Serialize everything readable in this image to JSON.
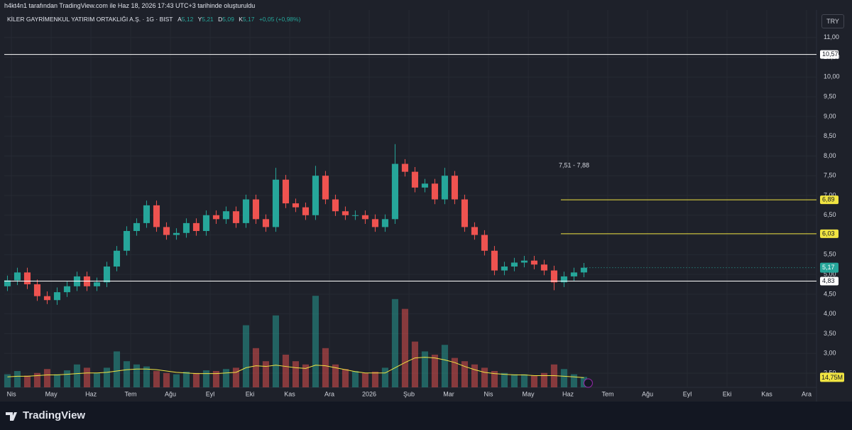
{
  "header": {
    "byline": "h4kt4n1 tarafından TradingView.com ile Haz 18, 2026 17:43 UTC+3 tarihinde oluşturuldu",
    "symbol": "KİLER GAYRİMENKUL YATIRIM ORTAKLIĞI A.Ş. · 1G · BIST",
    "o_label": "A",
    "o": "5,12",
    "h_label": "Y",
    "h": "5,21",
    "l_label": "D",
    "l": "5,09",
    "c_label": "K",
    "c": "5,17",
    "change": "+0,05 (+0,98%)",
    "currency": "TRY"
  },
  "footer": {
    "brand": "TradingView"
  },
  "chart_data": {
    "type": "candlestick",
    "up_color": "#26a69a",
    "down_color": "#ef5350",
    "grid": true,
    "x": [
      -0.1,
      0.15,
      0.4,
      0.65,
      0.9,
      1.15,
      1.4,
      1.65,
      1.9,
      2.15,
      2.4,
      2.65,
      2.9,
      3.15,
      3.4,
      3.65,
      3.9,
      4.15,
      4.4,
      4.65,
      4.9,
      5.15,
      5.4,
      5.65,
      5.9,
      6.15,
      6.4,
      6.65,
      6.9,
      7.15,
      7.4,
      7.65,
      7.9,
      8.15,
      8.4,
      8.65,
      8.9,
      9.15,
      9.4,
      9.65,
      9.9,
      10.15,
      10.4,
      10.65,
      10.9,
      11.15,
      11.4,
      11.65,
      11.9,
      12.15,
      12.4,
      12.65,
      12.9,
      13.15,
      13.4,
      13.65,
      13.9,
      14.15,
      14.4
    ],
    "open": [
      4.7,
      4.85,
      5.05,
      4.75,
      4.45,
      4.35,
      4.55,
      4.7,
      4.95,
      4.7,
      4.8,
      5.2,
      5.6,
      6.1,
      6.3,
      6.75,
      6.2,
      6.0,
      6.05,
      6.3,
      6.1,
      6.5,
      6.4,
      6.6,
      6.3,
      6.9,
      6.4,
      6.2,
      7.4,
      6.8,
      6.7,
      6.5,
      7.5,
      6.9,
      6.6,
      6.5,
      6.5,
      6.4,
      6.2,
      6.4,
      7.8,
      7.6,
      7.2,
      7.3,
      6.9,
      7.5,
      6.9,
      6.2,
      6.0,
      5.6,
      5.1,
      5.2,
      5.3,
      5.35,
      5.25,
      5.1,
      4.8,
      4.95,
      5.05
    ],
    "high": [
      4.97,
      5.17,
      5.17,
      4.87,
      4.57,
      4.67,
      4.82,
      5.07,
      5.07,
      4.92,
      5.32,
      5.72,
      6.22,
      6.42,
      6.87,
      6.87,
      6.32,
      6.17,
      6.42,
      6.42,
      6.62,
      6.62,
      6.72,
      6.72,
      7.02,
      7.02,
      6.52,
      7.7,
      7.52,
      6.92,
      6.82,
      7.75,
      7.62,
      7.02,
      6.72,
      6.62,
      6.62,
      6.52,
      6.52,
      8.3,
      7.92,
      7.72,
      7.42,
      7.42,
      7.7,
      7.62,
      7.02,
      6.32,
      6.12,
      5.72,
      5.32,
      5.42,
      5.47,
      5.47,
      5.37,
      5.22,
      5.07,
      5.17,
      5.29
    ],
    "low": [
      4.58,
      4.73,
      4.63,
      4.33,
      4.25,
      4.23,
      4.43,
      4.58,
      4.58,
      4.58,
      4.68,
      5.08,
      5.48,
      5.98,
      6.18,
      6.08,
      5.88,
      5.88,
      5.93,
      5.98,
      5.98,
      6.28,
      6.28,
      6.18,
      6.18,
      6.28,
      6.08,
      6.08,
      6.68,
      6.58,
      6.38,
      6.38,
      6.78,
      6.48,
      6.38,
      6.38,
      6.28,
      6.08,
      6.08,
      6.28,
      7.48,
      7.08,
      7.08,
      6.78,
      6.78,
      6.78,
      6.08,
      5.88,
      5.48,
      4.98,
      4.98,
      5.08,
      5.18,
      5.13,
      4.98,
      4.6,
      4.68,
      4.83,
      4.93
    ],
    "close": [
      4.85,
      5.05,
      4.75,
      4.45,
      4.35,
      4.55,
      4.7,
      4.95,
      4.7,
      4.8,
      5.2,
      5.6,
      6.1,
      6.3,
      6.75,
      6.2,
      6.0,
      6.05,
      6.3,
      6.1,
      6.5,
      6.4,
      6.6,
      6.3,
      6.9,
      6.4,
      6.2,
      7.4,
      6.8,
      6.7,
      6.5,
      7.5,
      6.9,
      6.6,
      6.5,
      6.5,
      6.4,
      6.2,
      6.4,
      7.8,
      7.6,
      7.2,
      7.3,
      6.9,
      7.5,
      6.9,
      6.2,
      6.0,
      5.6,
      5.1,
      5.2,
      5.3,
      5.35,
      5.25,
      5.1,
      4.8,
      4.95,
      5.05,
      5.17
    ],
    "volume": [
      20,
      25,
      18,
      22,
      28,
      20,
      26,
      35,
      30,
      22,
      30,
      55,
      40,
      35,
      32,
      25,
      22,
      20,
      24,
      22,
      26,
      25,
      28,
      30,
      95,
      60,
      40,
      110,
      50,
      40,
      35,
      140,
      60,
      35,
      28,
      25,
      22,
      24,
      30,
      135,
      120,
      70,
      55,
      50,
      65,
      45,
      40,
      35,
      30,
      25,
      22,
      20,
      20,
      18,
      22,
      35,
      28,
      20,
      16
    ],
    "volume_ma": [
      16,
      17,
      17,
      18,
      19,
      19,
      20,
      21,
      22,
      22,
      23,
      25,
      27,
      28,
      28,
      27,
      25,
      23,
      22,
      21,
      21,
      21,
      22,
      23,
      30,
      33,
      32,
      34,
      32,
      30,
      29,
      34,
      33,
      30,
      27,
      24,
      22,
      22,
      22,
      30,
      38,
      45,
      46,
      45,
      42,
      38,
      32,
      27,
      23,
      21,
      20,
      19,
      19,
      18,
      18,
      18,
      17,
      16,
      14.75
    ],
    "volume_ma_label": "14,75M",
    "volume_ma_color": "#f0e442",
    "vlim": [
      0,
      150
    ],
    "xlim": [
      -0.18,
      20.25
    ],
    "xticks": [
      {
        "value": 0,
        "label": "Nis"
      },
      {
        "value": 1,
        "label": "May"
      },
      {
        "value": 2,
        "label": "Haz"
      },
      {
        "value": 3,
        "label": "Tem"
      },
      {
        "value": 4,
        "label": "Ağu"
      },
      {
        "value": 5,
        "label": "Eyl"
      },
      {
        "value": 6,
        "label": "Eki"
      },
      {
        "value": 7,
        "label": "Kas"
      },
      {
        "value": 8,
        "label": "Ara"
      },
      {
        "value": 9,
        "label": "2026"
      },
      {
        "value": 10,
        "label": "Şub"
      },
      {
        "value": 11,
        "label": "Mar"
      },
      {
        "value": 12,
        "label": "Nis"
      },
      {
        "value": 13,
        "label": "May"
      },
      {
        "value": 14,
        "label": "Haz"
      },
      {
        "value": 15,
        "label": "Tem"
      },
      {
        "value": 16,
        "label": "Ağu"
      },
      {
        "value": 17,
        "label": "Eyl"
      },
      {
        "value": 18,
        "label": "Eki"
      },
      {
        "value": 19,
        "label": "Kas"
      },
      {
        "value": 20,
        "label": "Ara"
      }
    ],
    "ylim": [
      2.14,
      11.41
    ],
    "yticks": [
      {
        "value": 2.5,
        "label": "2,50"
      },
      {
        "value": 3,
        "label": "3,00"
      },
      {
        "value": 3.5,
        "label": "3,50"
      },
      {
        "value": 4,
        "label": "4,00"
      },
      {
        "value": 4.5,
        "label": "4,50"
      },
      {
        "value": 5,
        "label": "5,00"
      },
      {
        "value": 5.5,
        "label": "5,50"
      },
      {
        "value": 6,
        "label": "6,00"
      },
      {
        "value": 6.5,
        "label": "6,50"
      },
      {
        "value": 7,
        "label": "7,00"
      },
      {
        "value": 7.5,
        "label": "7,50"
      },
      {
        "value": 8,
        "label": "8,00"
      },
      {
        "value": 8.5,
        "label": "8,50"
      },
      {
        "value": 9,
        "label": "9,00"
      },
      {
        "value": 9.5,
        "label": "9,50"
      },
      {
        "value": 10,
        "label": "10,00"
      },
      {
        "value": 10.5,
        "label": "10,50"
      },
      {
        "value": 11,
        "label": "11,00"
      }
    ],
    "hlines": [
      {
        "value": 10.57,
        "label": "10,57",
        "color": "#ffffff"
      },
      {
        "value": 6.89,
        "label": "6,89",
        "color": "#f0e442",
        "x_start": 13.82
      },
      {
        "value": 6.03,
        "label": "6,03",
        "color": "#f0e442",
        "x_start": 13.82
      },
      {
        "value": 4.83,
        "label": "4,83",
        "color": "#ffffff"
      }
    ],
    "last_price": {
      "value": 5.17,
      "label": "5,17"
    },
    "annotation": "7,51 - 7,88"
  }
}
